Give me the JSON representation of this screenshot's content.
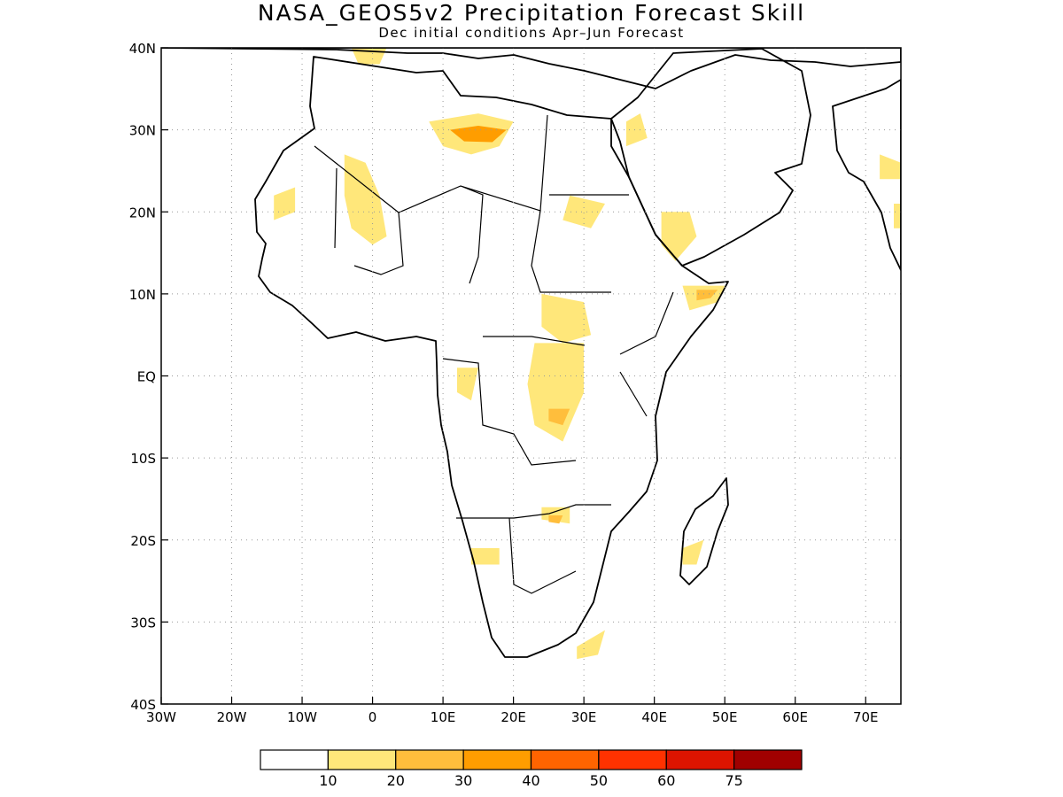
{
  "title": "NASA_GEOS5v2 Precipitation Forecast Skill",
  "subtitle": "Dec initial conditions  Apr–Jun Forecast",
  "axes": {
    "lon_range": [
      -30,
      75
    ],
    "lat_range": [
      -40,
      40
    ],
    "x_ticks": [
      "30W",
      "20W",
      "10W",
      "0",
      "10E",
      "20E",
      "30E",
      "40E",
      "50E",
      "60E",
      "70E"
    ],
    "y_ticks": [
      "40N",
      "30N",
      "20N",
      "10N",
      "EQ",
      "10S",
      "20S",
      "30S",
      "40S"
    ],
    "grid": "dotted"
  },
  "colorbar": {
    "labels": [
      "10",
      "20",
      "30",
      "40",
      "50",
      "60",
      "75"
    ],
    "colors": [
      "#ffffff",
      "#ffe77a",
      "#ffbe3c",
      "#ff9d00",
      "#ff6400",
      "#ff3200",
      "#dd1400",
      "#a00000"
    ]
  },
  "skill_regions": [
    {
      "level": 1,
      "points": [
        [
          -14,
          22
        ],
        [
          -11,
          23
        ],
        [
          -11,
          20
        ],
        [
          -14,
          19
        ]
      ]
    },
    {
      "level": 1,
      "points": [
        [
          -4,
          27
        ],
        [
          -1,
          26
        ],
        [
          1,
          22
        ],
        [
          2,
          17
        ],
        [
          0,
          16
        ],
        [
          -3,
          18
        ],
        [
          -4,
          22
        ]
      ]
    },
    {
      "level": 1,
      "points": [
        [
          8,
          31
        ],
        [
          15,
          32
        ],
        [
          20,
          31
        ],
        [
          18,
          28
        ],
        [
          14,
          27
        ],
        [
          10,
          28
        ]
      ]
    },
    {
      "level": 3,
      "points": [
        [
          11,
          30
        ],
        [
          15,
          30.5
        ],
        [
          19,
          30
        ],
        [
          17,
          28.5
        ],
        [
          13,
          28.6
        ]
      ]
    },
    {
      "level": 1,
      "points": [
        [
          28,
          22
        ],
        [
          33,
          21
        ],
        [
          31,
          18
        ],
        [
          27,
          19
        ]
      ]
    },
    {
      "level": 1,
      "points": [
        [
          41,
          20
        ],
        [
          45,
          20
        ],
        [
          46,
          17
        ],
        [
          43,
          14
        ],
        [
          41,
          16
        ]
      ]
    },
    {
      "level": 1,
      "points": [
        [
          44,
          11
        ],
        [
          50,
          11
        ],
        [
          49,
          9
        ],
        [
          45,
          8
        ]
      ]
    },
    {
      "level": 2,
      "points": [
        [
          46,
          10.5
        ],
        [
          49,
          10.5
        ],
        [
          48,
          9.5
        ],
        [
          46,
          9.2
        ]
      ]
    },
    {
      "level": 1,
      "points": [
        [
          24,
          10
        ],
        [
          30,
          9
        ],
        [
          31,
          5
        ],
        [
          27,
          4
        ],
        [
          24,
          6
        ]
      ]
    },
    {
      "level": 1,
      "points": [
        [
          23,
          4
        ],
        [
          30,
          4
        ],
        [
          30,
          -2
        ],
        [
          27,
          -8
        ],
        [
          23,
          -6
        ],
        [
          22,
          -1
        ]
      ]
    },
    {
      "level": 2,
      "points": [
        [
          25,
          -4
        ],
        [
          28,
          -4
        ],
        [
          27,
          -6
        ],
        [
          25,
          -5.5
        ]
      ]
    },
    {
      "level": 1,
      "points": [
        [
          12,
          1
        ],
        [
          15,
          1
        ],
        [
          14,
          -3
        ],
        [
          12,
          -2
        ]
      ]
    },
    {
      "level": 1,
      "points": [
        [
          24,
          -16
        ],
        [
          28,
          -16
        ],
        [
          28,
          -18
        ],
        [
          24,
          -17.5
        ]
      ]
    },
    {
      "level": 2,
      "points": [
        [
          25,
          -17
        ],
        [
          27,
          -17
        ],
        [
          26.5,
          -18
        ],
        [
          25,
          -17.8
        ]
      ]
    },
    {
      "level": 1,
      "points": [
        [
          14,
          -21
        ],
        [
          18,
          -21
        ],
        [
          18,
          -23
        ],
        [
          14,
          -23
        ]
      ]
    },
    {
      "level": 1,
      "points": [
        [
          44,
          -21
        ],
        [
          47,
          -20
        ],
        [
          46,
          -23
        ],
        [
          44,
          -23
        ]
      ]
    },
    {
      "level": 1,
      "points": [
        [
          29,
          -33
        ],
        [
          33,
          -31
        ],
        [
          32,
          -34
        ],
        [
          29,
          -34.5
        ]
      ]
    },
    {
      "level": 1,
      "points": [
        [
          72,
          27
        ],
        [
          75,
          26
        ],
        [
          75,
          24
        ],
        [
          72,
          24
        ]
      ]
    },
    {
      "level": 1,
      "points": [
        [
          74,
          21
        ],
        [
          75,
          21
        ],
        [
          75,
          18
        ],
        [
          74,
          18
        ]
      ]
    },
    {
      "level": 1,
      "points": [
        [
          -3,
          40
        ],
        [
          2,
          40
        ],
        [
          1,
          38
        ],
        [
          -2,
          38
        ]
      ]
    },
    {
      "level": 1,
      "points": [
        [
          36,
          31
        ],
        [
          38,
          32
        ],
        [
          39,
          29
        ],
        [
          36,
          28
        ]
      ]
    }
  ]
}
